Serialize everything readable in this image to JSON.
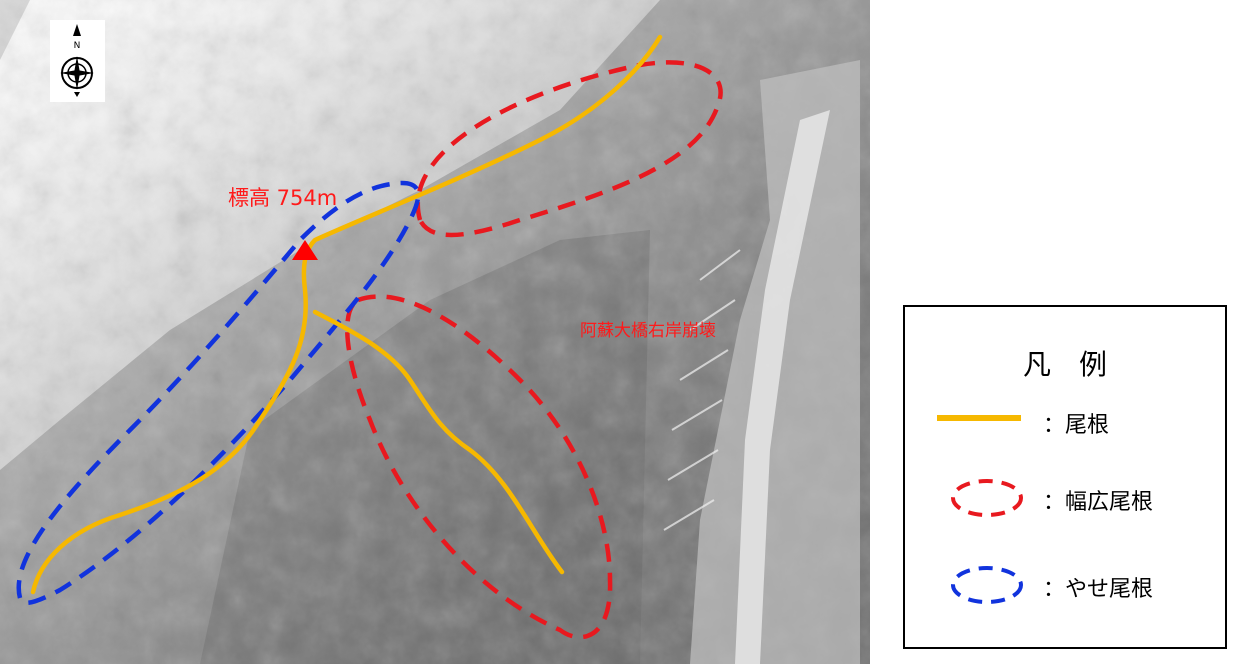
{
  "map": {
    "elevation_label": "標高 754m",
    "collapse_label": "阿蘇大橋右岸崩壊"
  },
  "legend": {
    "title": "凡　例",
    "items": [
      {
        "text": "：尾根",
        "color": "#f6b800",
        "style": "solid line"
      },
      {
        "text": "：幅広尾根",
        "color": "#e8191f",
        "style": "dashed ellipse"
      },
      {
        "text": "：やせ尾根",
        "color": "#1133dd",
        "style": "dashed ellipse"
      }
    ]
  },
  "colors": {
    "ridge": "#f6b800",
    "wide_ridge": "#e8191f",
    "narrow_ridge": "#1133dd",
    "summit_marker": "#ff0000"
  },
  "icons": {
    "north_arrow": "compass-rose-icon",
    "summit": "triangle-marker-icon"
  }
}
